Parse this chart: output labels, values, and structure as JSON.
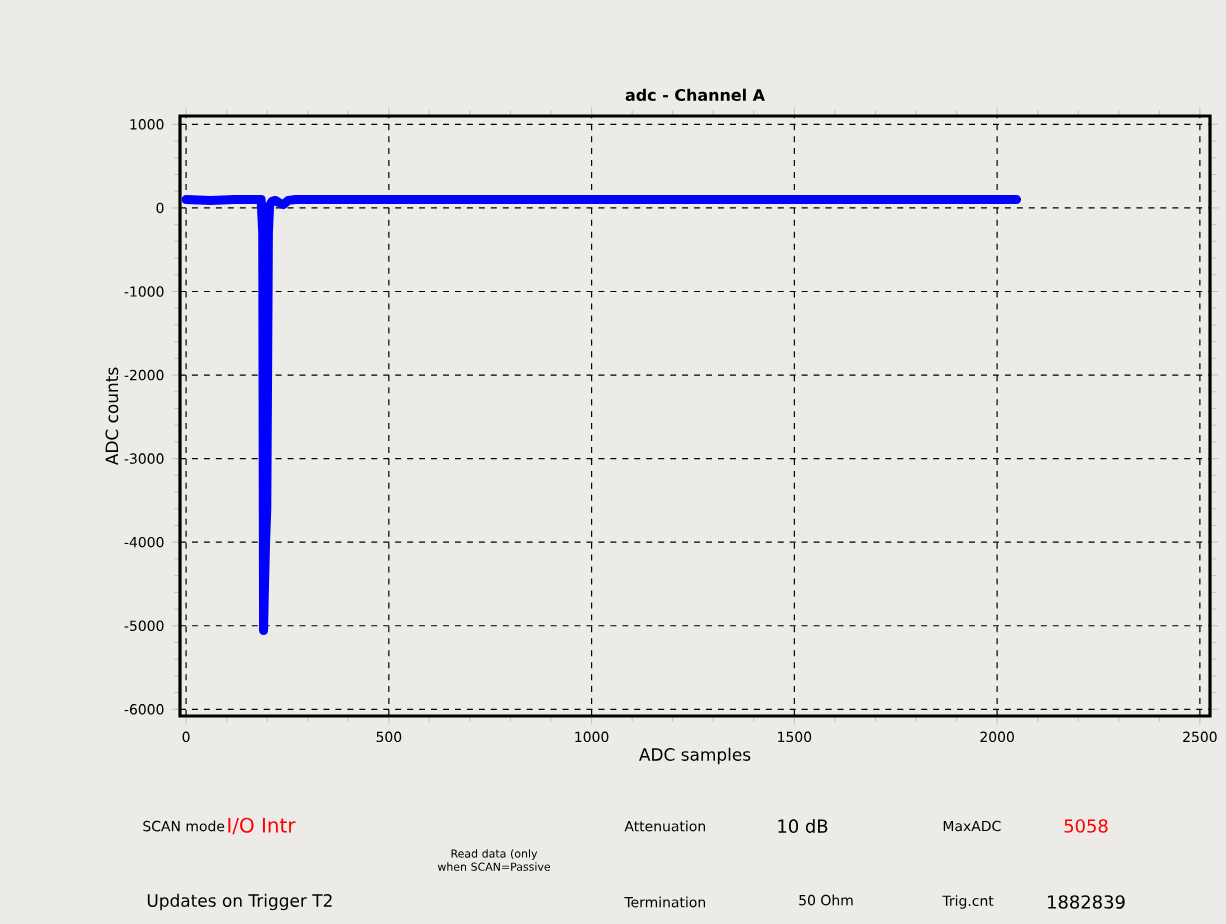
{
  "chart_data": {
    "type": "line",
    "title": "adc - Channel A",
    "xlabel": "ADC samples",
    "ylabel": "ADC counts",
    "xlim": [
      -15,
      2525
    ],
    "ylim": [
      -6080,
      1100
    ],
    "xticks": [
      0,
      500,
      1000,
      1500,
      2000,
      2500
    ],
    "yticks": [
      1000,
      0,
      -1000,
      -2000,
      -3000,
      -4000,
      -5000,
      -6000
    ],
    "grid": true,
    "marker": "none",
    "line_style": "solid",
    "series": [
      {
        "color": "#0000ff",
        "x": [
          0,
          60,
          120,
          185,
          189,
          191,
          193,
          196,
          199,
          201,
          203,
          206,
          212,
          220,
          230,
          240,
          252,
          270,
          500,
          1000,
          1500,
          2048
        ],
        "values": [
          100,
          90,
          100,
          100,
          -300,
          -5058,
          -4600,
          -4000,
          -3600,
          -2000,
          -300,
          30,
          80,
          90,
          60,
          40,
          90,
          100,
          100,
          100,
          100,
          100
        ]
      }
    ],
    "annotations": [
      "SCAN mode",
      "I/O Intr",
      "Read data (only when SCAN=Passive",
      "Updates on Trigger T2",
      "Attenuation",
      "10 dB",
      "Termination",
      "50 Ohm",
      "MaxADC",
      "5058",
      "Trig.cnt",
      "1882839"
    ]
  }
}
